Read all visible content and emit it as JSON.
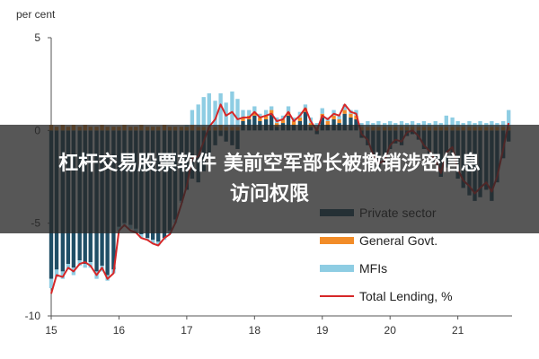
{
  "chart_data": {
    "type": "bar",
    "unit_label": "per cent",
    "y_ticks": [
      "5",
      "0",
      "-5",
      "-10"
    ],
    "x_ticks": [
      "15",
      "16",
      "17",
      "18",
      "19",
      "20",
      "21"
    ],
    "ylim": [
      -10,
      5
    ],
    "xlim": [
      15,
      21.8
    ],
    "grid": false,
    "legend_position": "bottom-right",
    "colors": {
      "private": "#1f4e66",
      "general": "#f28c28",
      "mfis": "#8ecde3",
      "total": "#d62728"
    },
    "months": [
      15.0,
      15.08,
      15.17,
      15.25,
      15.33,
      15.42,
      15.5,
      15.58,
      15.67,
      15.75,
      15.83,
      15.92,
      16.0,
      16.08,
      16.17,
      16.25,
      16.33,
      16.42,
      16.5,
      16.58,
      16.67,
      16.75,
      16.83,
      16.92,
      17.0,
      17.08,
      17.17,
      17.25,
      17.33,
      17.42,
      17.5,
      17.58,
      17.67,
      17.75,
      17.83,
      17.92,
      18.0,
      18.08,
      18.17,
      18.25,
      18.33,
      18.42,
      18.5,
      18.58,
      18.67,
      18.75,
      18.83,
      18.92,
      19.0,
      19.08,
      19.17,
      19.25,
      19.33,
      19.42,
      19.5,
      19.58,
      19.67,
      19.75,
      19.83,
      19.92,
      20.0,
      20.08,
      20.17,
      20.25,
      20.33,
      20.42,
      20.5,
      20.58,
      20.67,
      20.75,
      20.83,
      20.92,
      21.0,
      21.08,
      21.17,
      21.25,
      21.33,
      21.42,
      21.5,
      21.58,
      21.67,
      21.75
    ],
    "series": [
      {
        "name": "Private sector",
        "values": [
          -8,
          -7.5,
          -7.6,
          -7.2,
          -7.4,
          -7.0,
          -7.2,
          -7.1,
          -7.6,
          -7.3,
          -7.8,
          -7.5,
          -5.2,
          -5.0,
          -5.1,
          -5.3,
          -5.6,
          -5.8,
          -5.9,
          -6.0,
          -5.8,
          -5.4,
          -4.8,
          -3.8,
          -3.2,
          -2.6,
          -2.8,
          -2.2,
          -1.5,
          -0.8,
          -0.3,
          -0.6,
          -0.8,
          -1.0,
          0.5,
          0.6,
          0.8,
          0.5,
          0.6,
          0.9,
          0.2,
          0.4,
          0.8,
          0.3,
          0.5,
          1.0,
          0.2,
          -0.2,
          0.7,
          0.3,
          0.6,
          0.4,
          0.9,
          0.7,
          0.6,
          -0.4,
          -0.8,
          -1.5,
          -2.0,
          -1.8,
          -1.0,
          -0.7,
          -0.8,
          -0.3,
          -0.2,
          -0.5,
          -1.0,
          -1.3,
          -1.8,
          -2.5,
          -2.0,
          -1.6,
          -2.6,
          -3.1,
          -3.5,
          -3.8,
          -3.6,
          -3.2,
          -3.8,
          -2.8,
          -1.5,
          -0.6
        ]
      },
      {
        "name": "General Govt.",
        "values": [
          0.3,
          0.2,
          0.3,
          0.2,
          0.3,
          0.2,
          0.3,
          0.2,
          0.2,
          0.3,
          0.2,
          0.2,
          0.2,
          0.3,
          0.2,
          0.2,
          0.3,
          0.2,
          0.2,
          0.2,
          0.3,
          0.2,
          0.2,
          0.2,
          0.2,
          0.3,
          0.2,
          0.2,
          0.2,
          0.2,
          0.3,
          0.2,
          0.2,
          0.2,
          0.2,
          0.2,
          0.2,
          0.2,
          0.2,
          0.2,
          0.2,
          0.2,
          0.2,
          0.2,
          0.2,
          0.2,
          0.2,
          0.2,
          0.2,
          0.2,
          0.2,
          0.2,
          0.2,
          0.2,
          0.2,
          0.2,
          0.2,
          0.2,
          0.2,
          0.2,
          0.2,
          0.2,
          0.2,
          0.2,
          0.2,
          0.2,
          0.2,
          0.2,
          0.2,
          0.2,
          0.2,
          0.2,
          0.2,
          0.2,
          0.2,
          0.2,
          0.2,
          0.2,
          0.2,
          0.2,
          0.2,
          0.2
        ]
      },
      {
        "name": "MFIs",
        "values": [
          -0.5,
          -0.4,
          -0.4,
          -0.3,
          -0.4,
          -0.3,
          -0.2,
          -0.3,
          -0.4,
          -0.3,
          -0.3,
          -0.2,
          -0.2,
          -0.1,
          -0.2,
          -0.2,
          -0.2,
          -0.1,
          -0.2,
          -0.2,
          -0.1,
          -0.2,
          -0.2,
          -0.1,
          0.1,
          0.8,
          1.2,
          1.6,
          1.8,
          1.4,
          1.7,
          1.3,
          1.9,
          1.5,
          0.4,
          0.3,
          0.3,
          0.2,
          0.3,
          0.2,
          0.3,
          0.2,
          0.3,
          0.2,
          0.3,
          0.2,
          0.3,
          0.2,
          0.3,
          0.2,
          0.3,
          0.2,
          0.3,
          0.2,
          0.3,
          0.2,
          0.3,
          0.2,
          0.3,
          0.2,
          0.3,
          0.2,
          0.3,
          0.2,
          0.3,
          0.2,
          0.3,
          0.2,
          0.3,
          0.2,
          0.6,
          0.5,
          0.3,
          0.2,
          0.3,
          0.2,
          0.3,
          0.2,
          0.3,
          0.2,
          0.3,
          0.9
        ]
      },
      {
        "name": "Total Lending, %",
        "values": [
          -8.8,
          -7.8,
          -7.9,
          -7.4,
          -7.6,
          -7.2,
          -7.1,
          -7.3,
          -7.8,
          -7.4,
          -8.0,
          -7.7,
          -5.4,
          -5.1,
          -5.4,
          -5.5,
          -5.8,
          -5.9,
          -6.1,
          -6.2,
          -5.8,
          -5.6,
          -5.0,
          -4.0,
          -3.0,
          -1.5,
          -1.4,
          -0.6,
          0.2,
          0.6,
          1.4,
          0.8,
          1.0,
          0.6,
          0.7,
          0.7,
          1.0,
          0.7,
          0.8,
          0.9,
          0.5,
          0.6,
          1.0,
          0.5,
          0.8,
          1.2,
          0.5,
          0.0,
          0.8,
          0.6,
          0.9,
          0.8,
          1.4,
          1.0,
          0.9,
          -0.2,
          -0.5,
          -1.3,
          -1.8,
          -1.6,
          -0.8,
          -0.5,
          -0.6,
          -0.1,
          0.0,
          -0.3,
          -0.8,
          -1.1,
          -1.6,
          -2.3,
          -1.2,
          -0.9,
          -2.1,
          -2.7,
          -3.0,
          -3.4,
          -3.1,
          -2.8,
          -3.3,
          -2.5,
          -1.0,
          0.4
        ]
      }
    ]
  },
  "banner": {
    "line1": "杠杆交易股票软件 美前空军部长被撤销涉密信息",
    "line2": "访问权限"
  }
}
